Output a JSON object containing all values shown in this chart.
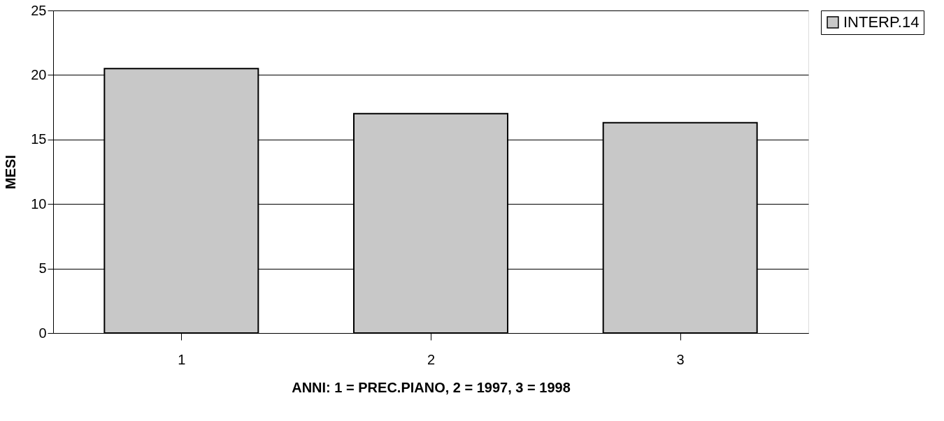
{
  "chart_data": {
    "type": "bar",
    "xlabel": "ANNI: 1 = PREC.PIANO, 2 = 1997, 3 = 1998",
    "ylabel": "MESI",
    "categories": [
      "1",
      "2",
      "3"
    ],
    "series": [
      {
        "name": "INTERP.14",
        "color": "#c8c8c8",
        "values": [
          20.5,
          17.0,
          16.3
        ]
      }
    ],
    "ylim": [
      0,
      25
    ],
    "yticks": [
      0,
      5,
      10,
      15,
      20,
      25
    ],
    "grid": "y",
    "legend": "right"
  }
}
